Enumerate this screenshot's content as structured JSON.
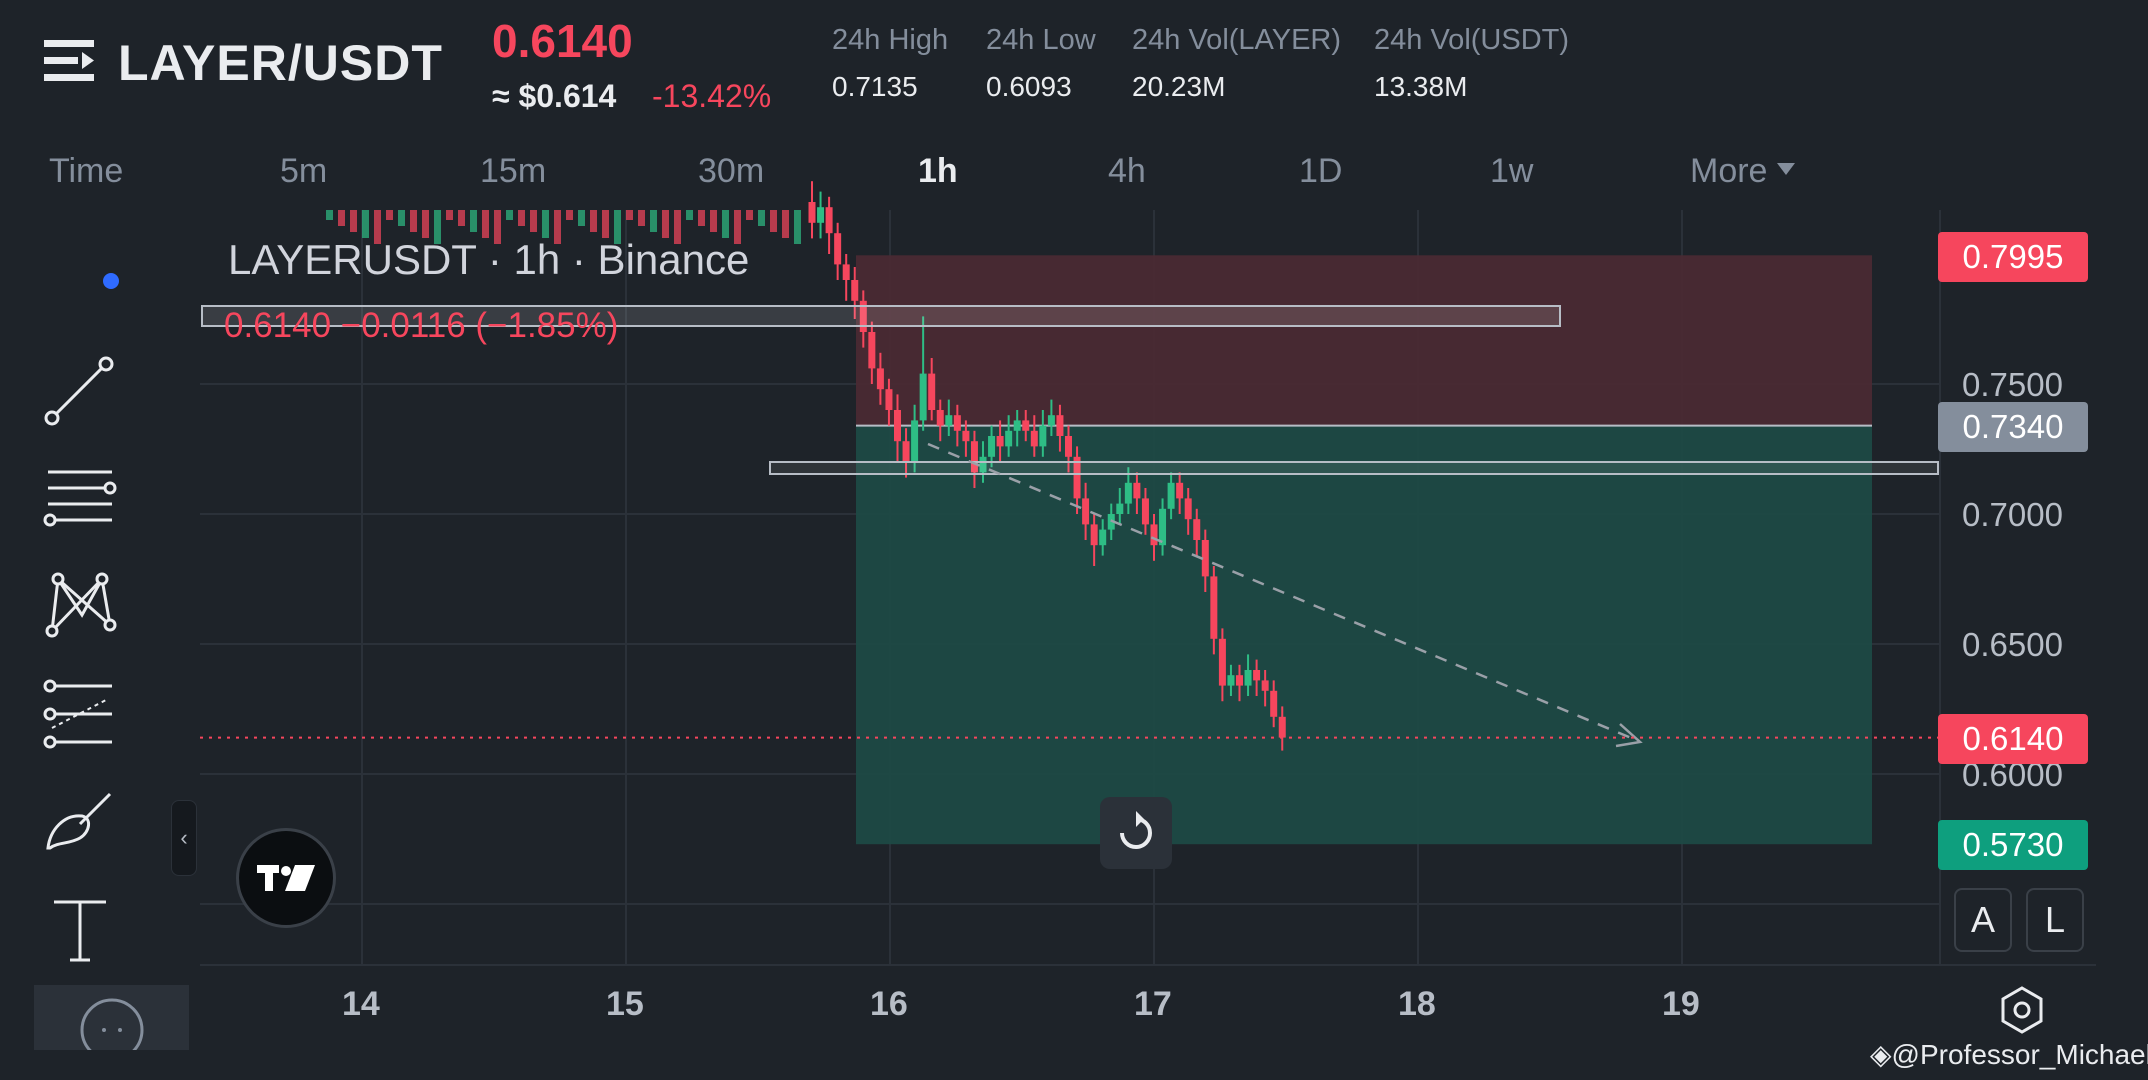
{
  "header": {
    "pair": "LAYER/USDT",
    "last_price": "0.6140",
    "usd_price": "≈ $0.614",
    "change_pct": "-13.42%",
    "stats": [
      {
        "label": "24h High",
        "value": "0.7135"
      },
      {
        "label": "24h Low",
        "value": "0.6093"
      },
      {
        "label": "24h Vol(LAYER)",
        "value": "20.23M"
      },
      {
        "label": "24h Vol(USDT)",
        "value": "13.38M"
      }
    ]
  },
  "timeframes": {
    "items": [
      "Time",
      "5m",
      "15m",
      "30m",
      "1h",
      "4h",
      "1D",
      "1w"
    ],
    "active": "1h",
    "more_label": "More"
  },
  "chart": {
    "title": "LAYERUSDT · 1h · Binance",
    "ohlc_readout": "0.6140  −0.0116 (−1.85%)",
    "price_axis": [
      "0.7500",
      "0.7000",
      "0.6500",
      "0.6000"
    ],
    "price_tags": {
      "stop": "0.7995",
      "entry": "0.7340",
      "current": "0.6140",
      "target": "0.5730"
    },
    "date_labels": [
      "14",
      "15",
      "16",
      "17",
      "18",
      "19"
    ],
    "colors": {
      "up": "#2ebd85",
      "down": "#f6465d",
      "risk_zone": "#4a2a33",
      "reward_zone": "#1d4a44",
      "entry_tag": "#848e9c",
      "target_tag": "#0e9f7e"
    },
    "scale_buttons": [
      "A",
      "L"
    ]
  },
  "toolbar": {
    "tools": [
      "cursor-dot",
      "trend-line",
      "fib-retracement",
      "pattern",
      "prediction-projection",
      "brush",
      "text"
    ]
  },
  "watermark": "@Professor_Michael"
}
